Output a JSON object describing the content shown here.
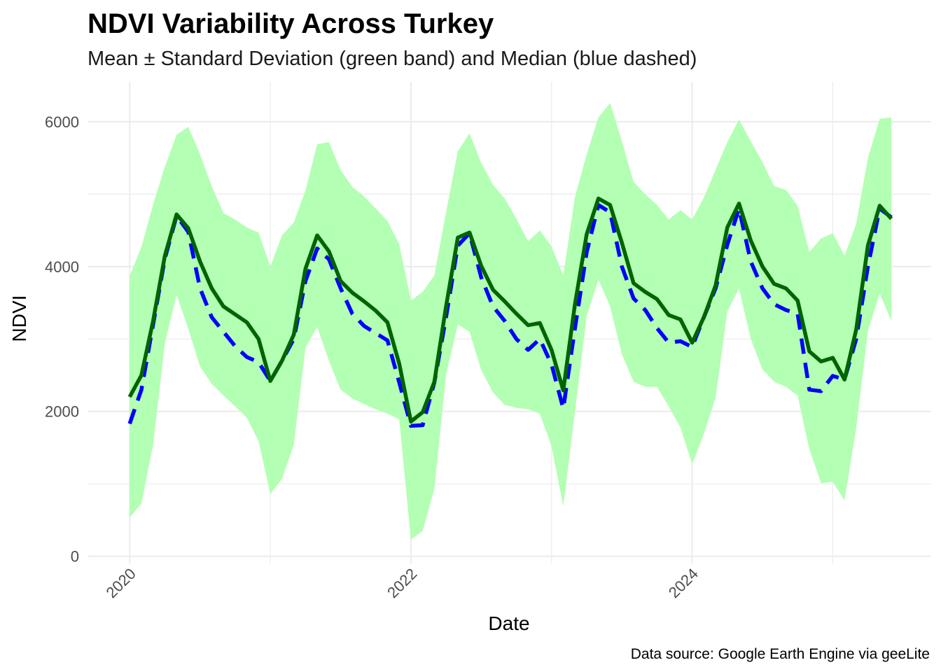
{
  "chart_data": {
    "type": "line",
    "title": "NDVI Variability Across Turkey",
    "subtitle": "Mean ± Standard Deviation (green band) and Median (blue dashed)",
    "xlabel": "Date",
    "ylabel": "NDVI",
    "caption": "Data source: Google Earth Engine via geeLite",
    "x_start": "2020-01",
    "x_ticks": [
      "2020",
      "2022",
      "2024"
    ],
    "x_tick_values": [
      2020,
      2022,
      2024
    ],
    "xlim": [
      2019.7,
      2025.7
    ],
    "y_ticks": [
      "0",
      "2000",
      "4000",
      "6000"
    ],
    "y_tick_values": [
      0,
      2000,
      4000,
      6000
    ],
    "ylim": [
      -100,
      6550
    ],
    "grid": true,
    "colors": {
      "band": "#b3ffb3",
      "mean": "#006400",
      "median": "#0000ff",
      "grid": "#ebebeb"
    },
    "x": [
      "2020-01",
      "2020-02",
      "2020-03",
      "2020-04",
      "2020-05",
      "2020-06",
      "2020-07",
      "2020-08",
      "2020-09",
      "2020-10",
      "2020-11",
      "2020-12",
      "2021-01",
      "2021-02",
      "2021-03",
      "2021-04",
      "2021-05",
      "2021-06",
      "2021-07",
      "2021-08",
      "2021-09",
      "2021-10",
      "2021-11",
      "2021-12",
      "2022-01",
      "2022-02",
      "2022-03",
      "2022-04",
      "2022-05",
      "2022-06",
      "2022-07",
      "2022-08",
      "2022-09",
      "2022-10",
      "2022-11",
      "2022-12",
      "2023-01",
      "2023-02",
      "2023-03",
      "2023-04",
      "2023-05",
      "2023-06",
      "2023-07",
      "2023-08",
      "2023-09",
      "2023-10",
      "2023-11",
      "2023-12",
      "2024-01",
      "2024-02",
      "2024-03",
      "2024-04",
      "2024-05",
      "2024-06",
      "2024-07",
      "2024-08",
      "2024-09",
      "2024-10",
      "2024-11",
      "2024-12",
      "2025-01",
      "2025-02",
      "2025-03",
      "2025-04",
      "2025-05",
      "2025-06"
    ],
    "series": [
      {
        "name": "Mean",
        "values": [
          2200,
          2500,
          3250,
          4150,
          4720,
          4530,
          4070,
          3700,
          3450,
          3340,
          3230,
          3000,
          2420,
          2700,
          3060,
          3970,
          4430,
          4210,
          3800,
          3640,
          3520,
          3390,
          3230,
          2660,
          1860,
          1990,
          2410,
          3450,
          4400,
          4470,
          4010,
          3680,
          3520,
          3350,
          3190,
          3220,
          2850,
          2290,
          3480,
          4450,
          4940,
          4850,
          4330,
          3770,
          3650,
          3550,
          3330,
          3270,
          2950,
          3300,
          3740,
          4540,
          4870,
          4360,
          4000,
          3760,
          3700,
          3530,
          2830,
          2690,
          2740,
          2440,
          3130,
          4290,
          4840,
          4660
        ]
      },
      {
        "name": "Median",
        "values": [
          1830,
          2300,
          3200,
          4110,
          4700,
          4480,
          3700,
          3300,
          3100,
          2900,
          2750,
          2680,
          2420,
          2700,
          3000,
          3800,
          4250,
          4100,
          3700,
          3350,
          3180,
          3080,
          2980,
          2400,
          1800,
          1810,
          2400,
          3300,
          4290,
          4460,
          3850,
          3450,
          3250,
          3000,
          2850,
          3000,
          2650,
          2040,
          3150,
          4200,
          4850,
          4750,
          4000,
          3560,
          3400,
          3150,
          2950,
          2970,
          2890,
          3300,
          3700,
          4300,
          4800,
          4070,
          3700,
          3480,
          3400,
          3350,
          2300,
          2280,
          2490,
          2440,
          3000,
          4000,
          4800,
          4680
        ]
      },
      {
        "name": "Mean + SD",
        "values": [
          3870,
          4270,
          4860,
          5380,
          5820,
          5930,
          5550,
          5110,
          4740,
          4650,
          4540,
          4470,
          4000,
          4430,
          4610,
          5050,
          5690,
          5720,
          5330,
          5100,
          4970,
          4800,
          4630,
          4310,
          3530,
          3650,
          3880,
          4750,
          5590,
          5840,
          5430,
          5130,
          4940,
          4660,
          4350,
          4500,
          4280,
          3880,
          4960,
          5550,
          6060,
          6260,
          5730,
          5170,
          5000,
          4850,
          4650,
          4780,
          4650,
          4950,
          5340,
          5720,
          6030,
          5730,
          5440,
          5110,
          5060,
          4840,
          4200,
          4390,
          4460,
          4150,
          4590,
          5500,
          6040,
          6060
        ]
      },
      {
        "name": "Mean - SD",
        "values": [
          530,
          730,
          1540,
          2940,
          3610,
          3140,
          2620,
          2380,
          2220,
          2070,
          1910,
          1590,
          860,
          1070,
          1540,
          2880,
          3170,
          2700,
          2300,
          2180,
          2100,
          2030,
          1970,
          1890,
          230,
          350,
          930,
          2510,
          3200,
          3100,
          2570,
          2260,
          2090,
          2050,
          2030,
          1970,
          1520,
          690,
          2000,
          3320,
          3820,
          3450,
          2790,
          2410,
          2340,
          2340,
          2070,
          1780,
          1270,
          1690,
          2190,
          3380,
          3700,
          3000,
          2580,
          2410,
          2340,
          2220,
          1480,
          1010,
          1030,
          770,
          1770,
          3110,
          3630,
          3250
        ]
      }
    ]
  }
}
